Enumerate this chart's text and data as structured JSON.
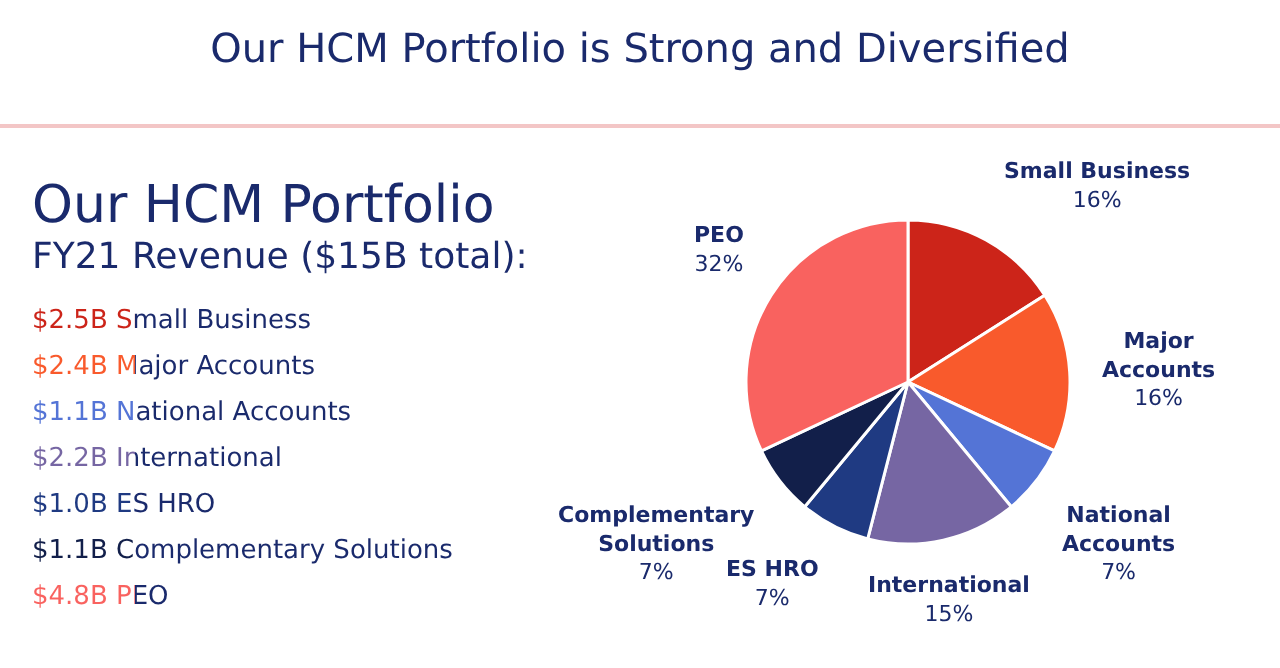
{
  "chart_data": {
    "type": "pie",
    "title": "Our HCM Portfolio is Strong and Diversified",
    "subtitle": "Our HCM Portfolio",
    "categories": [
      "Small Business",
      "Major Accounts",
      "National Accounts",
      "International",
      "ES HRO",
      "Complementary Solutions",
      "PEO"
    ],
    "values": [
      16,
      16,
      7,
      15,
      7,
      7,
      32
    ],
    "value_labels": [
      "16%",
      "16%",
      "7%",
      "15%",
      "7%",
      "7%",
      "32%"
    ],
    "colors": [
      "#cc2419",
      "#f95a2c",
      "#5474d6",
      "#7666a3",
      "#1f3a82",
      "#121f4a",
      "#f9625f"
    ],
    "annotations": [
      "FY21 Revenue ($15B total):",
      "$2.5B Small Business",
      "$2.4B Major Accounts",
      "$1.1B National Accounts",
      "$2.2B International",
      "$1.0B ES HRO",
      "$1.1B Complementary Solutions",
      "$4.8B PEO"
    ],
    "legend": false
  }
}
